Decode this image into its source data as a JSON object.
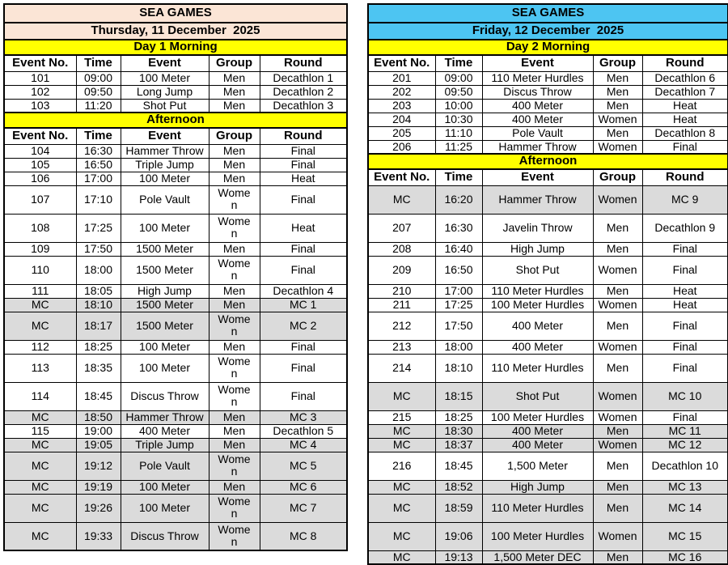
{
  "app": {
    "band_color": "#FFFF00",
    "mc_row_color": "#DBDBDB",
    "border_color": "#000000",
    "text_color": "#000000"
  },
  "tables": [
    {
      "title": "SEA GAMES",
      "date": "Thursday, 11 December  2025",
      "accent_color": "#FBE5D6",
      "columns": [
        "Event No.",
        "Time",
        "Event",
        "Group",
        "Round"
      ],
      "sections": [
        {
          "label": "Day 1 Morning",
          "rows": [
            {
              "no": "101",
              "time": "09:00",
              "event": "100 Meter",
              "group": "Men",
              "round": "Decathlon 1"
            },
            {
              "no": "102",
              "time": "09:50",
              "event": "Long Jump",
              "group": "Men",
              "round": "Decathlon 2"
            },
            {
              "no": "103",
              "time": "11:20",
              "event": "Shot Put",
              "group": "Men",
              "round": "Decathlon 3"
            }
          ]
        },
        {
          "label": "Afternoon",
          "rows": [
            {
              "no": "104",
              "time": "16:30",
              "event": "Hammer Throw",
              "group": "Men",
              "round": "Final"
            },
            {
              "no": "105",
              "time": "16:50",
              "event": "Triple Jump",
              "group": "Men",
              "round": "Final"
            },
            {
              "no": "106",
              "time": "17:00",
              "event": "100 Meter",
              "group": "Men",
              "round": "Heat"
            },
            {
              "no": "107",
              "time": "17:10",
              "event": "Pole Vault",
              "group": "Women",
              "round": "Final",
              "tall": true
            },
            {
              "no": "108",
              "time": "17:25",
              "event": "100 Meter",
              "group": "Women",
              "round": "Heat",
              "tall": true
            },
            {
              "no": "109",
              "time": "17:50",
              "event": "1500 Meter",
              "group": "Men",
              "round": "Final"
            },
            {
              "no": "110",
              "time": "18:00",
              "event": "1500 Meter",
              "group": "Women",
              "round": "Final",
              "tall": true
            },
            {
              "no": "111",
              "time": "18:05",
              "event": "High Jump",
              "group": "Men",
              "round": "Decathlon 4"
            },
            {
              "no": "MC",
              "time": "18:10",
              "event": "1500 Meter",
              "group": "Men",
              "round": "MC 1",
              "mc": true
            },
            {
              "no": "MC",
              "time": "18:17",
              "event": "1500 Meter",
              "group": "Women",
              "round": "MC 2",
              "mc": true,
              "tall": true
            },
            {
              "no": "112",
              "time": "18:25",
              "event": "100 Meter",
              "group": "Men",
              "round": "Final"
            },
            {
              "no": "113",
              "time": "18:35",
              "event": "100 Meter",
              "group": "Women",
              "round": "Final",
              "tall": true
            },
            {
              "no": "114",
              "time": "18:45",
              "event": "Discus Throw",
              "group": "Women",
              "round": "Final",
              "tall": true
            },
            {
              "no": "MC",
              "time": "18:50",
              "event": "Hammer Throw",
              "group": "Men",
              "round": "MC 3",
              "mc": true
            },
            {
              "no": "115",
              "time": "19:00",
              "event": "400 Meter",
              "group": "Men",
              "round": "Decathlon 5"
            },
            {
              "no": "MC",
              "time": "19:05",
              "event": "Triple Jump",
              "group": "Men",
              "round": "MC 4",
              "mc": true
            },
            {
              "no": "MC",
              "time": "19:12",
              "event": "Pole Vault",
              "group": "Women",
              "round": "MC 5",
              "mc": true,
              "tall": true
            },
            {
              "no": "MC",
              "time": "19:19",
              "event": "100 Meter",
              "group": "Men",
              "round": "MC 6",
              "mc": true
            },
            {
              "no": "MC",
              "time": "19:26",
              "event": "100 Meter",
              "group": "Women",
              "round": "MC 7",
              "mc": true,
              "tall": true
            },
            {
              "no": "MC",
              "time": "19:33",
              "event": "Discus Throw",
              "group": "Women",
              "round": "MC 8",
              "mc": true,
              "tall": true
            }
          ]
        }
      ]
    },
    {
      "title": "SEA GAMES",
      "date": "Friday, 12 December  2025",
      "accent_color": "#4DC5F2",
      "columns": [
        "Event No.",
        "Time",
        "Event",
        "Group",
        "Round"
      ],
      "sections": [
        {
          "label": "Day 2 Morning",
          "rows": [
            {
              "no": "201",
              "time": "09:00",
              "event": "110 Meter Hurdles",
              "group": "Men",
              "round": "Decathlon 6"
            },
            {
              "no": "202",
              "time": "09:50",
              "event": "Discus Throw",
              "group": "Men",
              "round": "Decathlon 7"
            },
            {
              "no": "203",
              "time": "10:00",
              "event": "400 Meter",
              "group": "Men",
              "round": "Heat"
            },
            {
              "no": "204",
              "time": "10:30",
              "event": "400 Meter",
              "group": "Women",
              "round": "Heat"
            },
            {
              "no": "205",
              "time": "11:10",
              "event": "Pole Vault",
              "group": "Men",
              "round": "Decathlon 8"
            },
            {
              "no": "206",
              "time": "11:25",
              "event": "Hammer Throw",
              "group": "Women",
              "round": "Final"
            }
          ]
        },
        {
          "label": "Afternoon",
          "rows": [
            {
              "no": "MC",
              "time": "16:20",
              "event": "Hammer Throw",
              "group": "Women",
              "round": "MC 9",
              "mc": true,
              "tall": true
            },
            {
              "no": "207",
              "time": "16:30",
              "event": "Javelin Throw",
              "group": "Men",
              "round": "Decathlon 9",
              "tall": true
            },
            {
              "no": "208",
              "time": "16:40",
              "event": "High Jump",
              "group": "Men",
              "round": "Final"
            },
            {
              "no": "209",
              "time": "16:50",
              "event": "Shot Put",
              "group": "Women",
              "round": "Final",
              "tall": true
            },
            {
              "no": "210",
              "time": "17:00",
              "event": "110 Meter Hurdles",
              "group": "Men",
              "round": "Heat"
            },
            {
              "no": "211",
              "time": "17:25",
              "event": "100 Meter Hurdles",
              "group": "Women",
              "round": "Heat"
            },
            {
              "no": "212",
              "time": "17:50",
              "event": "400 Meter",
              "group": "Men",
              "round": "Final",
              "tall": true
            },
            {
              "no": "213",
              "time": "18:00",
              "event": "400 Meter",
              "group": "Women",
              "round": "Final"
            },
            {
              "no": "214",
              "time": "18:10",
              "event": "110 Meter Hurdles",
              "group": "Men",
              "round": "Final",
              "tall": true
            },
            {
              "no": "MC",
              "time": "18:15",
              "event": "Shot Put",
              "group": "Women",
              "round": "MC 10",
              "mc": true,
              "tall": true
            },
            {
              "no": "215",
              "time": "18:25",
              "event": "100 Meter Hurdles",
              "group": "Women",
              "round": "Final"
            },
            {
              "no": "MC",
              "time": "18:30",
              "event": "400 Meter",
              "group": "Men",
              "round": "MC 11",
              "mc": true
            },
            {
              "no": "MC",
              "time": "18:37",
              "event": "400 Meter",
              "group": "Women",
              "round": "MC 12",
              "mc": true
            },
            {
              "no": "216",
              "time": "18:45",
              "event": "1,500 Meter",
              "group": "Men",
              "round": "Decathlon 10",
              "tall": true
            },
            {
              "no": "MC",
              "time": "18:52",
              "event": "High Jump",
              "group": "Men",
              "round": "MC 13",
              "mc": true
            },
            {
              "no": "MC",
              "time": "18:59",
              "event": "110 Meter Hurdles",
              "group": "Men",
              "round": "MC 14",
              "mc": true,
              "tall": true
            },
            {
              "no": "MC",
              "time": "19:06",
              "event": "100 Meter Hurdles",
              "group": "Women",
              "round": "MC 15",
              "mc": true,
              "tall": true
            },
            {
              "no": "MC",
              "time": "19:13",
              "event": "1,500 Meter DEC",
              "group": "Men",
              "round": "MC 16",
              "mc": true
            }
          ]
        }
      ]
    }
  ]
}
